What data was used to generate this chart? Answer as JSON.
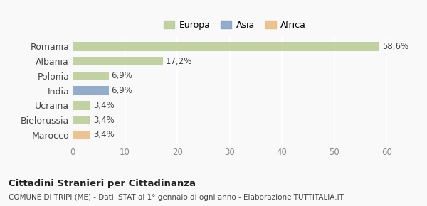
{
  "categories": [
    "Marocco",
    "Bielorussia",
    "Ucraina",
    "India",
    "Polonia",
    "Albania",
    "Romania"
  ],
  "values": [
    3.4,
    3.4,
    3.4,
    6.9,
    6.9,
    17.2,
    58.6
  ],
  "labels": [
    "3,4%",
    "3,4%",
    "3,4%",
    "6,9%",
    "6,9%",
    "17,2%",
    "58,6%"
  ],
  "colors": [
    "#e8b87a",
    "#b5c98e",
    "#b5c98e",
    "#7b9bbf",
    "#b5c98e",
    "#b5c98e",
    "#b5c98e"
  ],
  "legend": [
    {
      "label": "Europa",
      "color": "#b5c98e"
    },
    {
      "label": "Asia",
      "color": "#7b9bbf"
    },
    {
      "label": "Africa",
      "color": "#e8b87a"
    }
  ],
  "xlim": [
    0,
    62
  ],
  "xticks": [
    0,
    10,
    20,
    30,
    40,
    50,
    60
  ],
  "title": "Cittadini Stranieri per Cittadinanza",
  "subtitle": "COMUNE DI TRIPI (ME) - Dati ISTAT al 1° gennaio di ogni anno - Elaborazione TUTTITALIA.IT",
  "background_color": "#f9f9f9",
  "grid_color": "#ffffff",
  "bar_alpha": 0.82
}
